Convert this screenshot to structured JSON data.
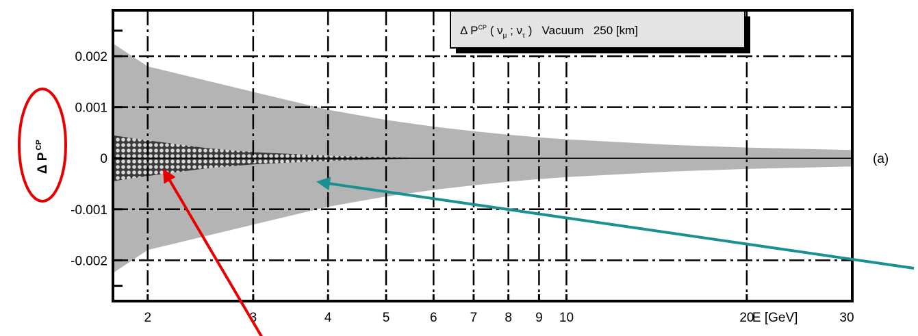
{
  "chart_data": {
    "type": "area",
    "title": {
      "main": "Δ P",
      "sup": "CP",
      "paren_open": " ( ν",
      "sub1": "μ",
      "sep": " ; ν",
      "sub2": "τ",
      "rest": " )   Vacuum   250 [km]"
    },
    "ylabel": {
      "main": "Δ P",
      "sup": "CP"
    },
    "xlabel": "E [GeV]",
    "panel_label": "(a)",
    "x_scale": "log",
    "xlim": [
      1.75,
      30
    ],
    "ylim": [
      -0.0028,
      0.0029
    ],
    "x_ticks": [
      {
        "value": 2,
        "label": "2"
      },
      {
        "value": 3,
        "label": "3"
      },
      {
        "value": 4,
        "label": "4"
      },
      {
        "value": 5,
        "label": "5"
      },
      {
        "value": 6,
        "label": "6"
      },
      {
        "value": 7,
        "label": "7"
      },
      {
        "value": 8,
        "label": "8"
      },
      {
        "value": 9,
        "label": "9"
      },
      {
        "value": 10,
        "label": "10"
      },
      {
        "value": 20,
        "label": "20"
      },
      {
        "value": 30,
        "label": "30"
      }
    ],
    "y_ticks": [
      {
        "value": 0.002,
        "label": "0.002"
      },
      {
        "value": 0.001,
        "label": "0.001"
      },
      {
        "value": 0,
        "label": "0"
      },
      {
        "value": -0.001,
        "label": "-0.001"
      },
      {
        "value": -0.002,
        "label": "-0.002"
      }
    ],
    "grid": true,
    "series": [
      {
        "fill": "#b4b4b4",
        "x": [
          1.75,
          2,
          3,
          4,
          5,
          6,
          7,
          8,
          9,
          10,
          15,
          20,
          30
        ],
        "upper": [
          0.00225,
          0.0018,
          0.0013,
          0.00095,
          0.00075,
          0.00062,
          0.00053,
          0.00046,
          0.00041,
          0.00037,
          0.00026,
          0.00021,
          0.00016
        ],
        "lower": [
          -0.00225,
          -0.0018,
          -0.0013,
          -0.00095,
          -0.00075,
          -0.00062,
          -0.00053,
          -0.00046,
          -0.00041,
          -0.00037,
          -0.00026,
          -0.00021,
          -0.00016
        ]
      },
      {
        "fill": "#5a5a5a",
        "pattern": "checker",
        "x": [
          1.75,
          2,
          2.5,
          3,
          4,
          5,
          6
        ],
        "upper": [
          0.00045,
          0.00035,
          0.0002,
          0.00012,
          5e-05,
          2e-05,
          0.0
        ],
        "lower": [
          -0.00045,
          -0.00035,
          -0.0002,
          -0.00012,
          -5e-05,
          -2e-05,
          0.0
        ]
      }
    ],
    "annotations": [
      {
        "type": "ellipse",
        "color": "#e60000",
        "target": "y-axis label"
      },
      {
        "type": "arrow",
        "color": "#e60000",
        "from": [
          3.85,
          -0.0042
        ],
        "to": [
          2.25,
          -0.0001
        ]
      },
      {
        "type": "arrow",
        "color": "#1a9090",
        "from": [
          80,
          -0.0031
        ],
        "to": [
          3.9,
          -0.0004
        ]
      }
    ]
  }
}
